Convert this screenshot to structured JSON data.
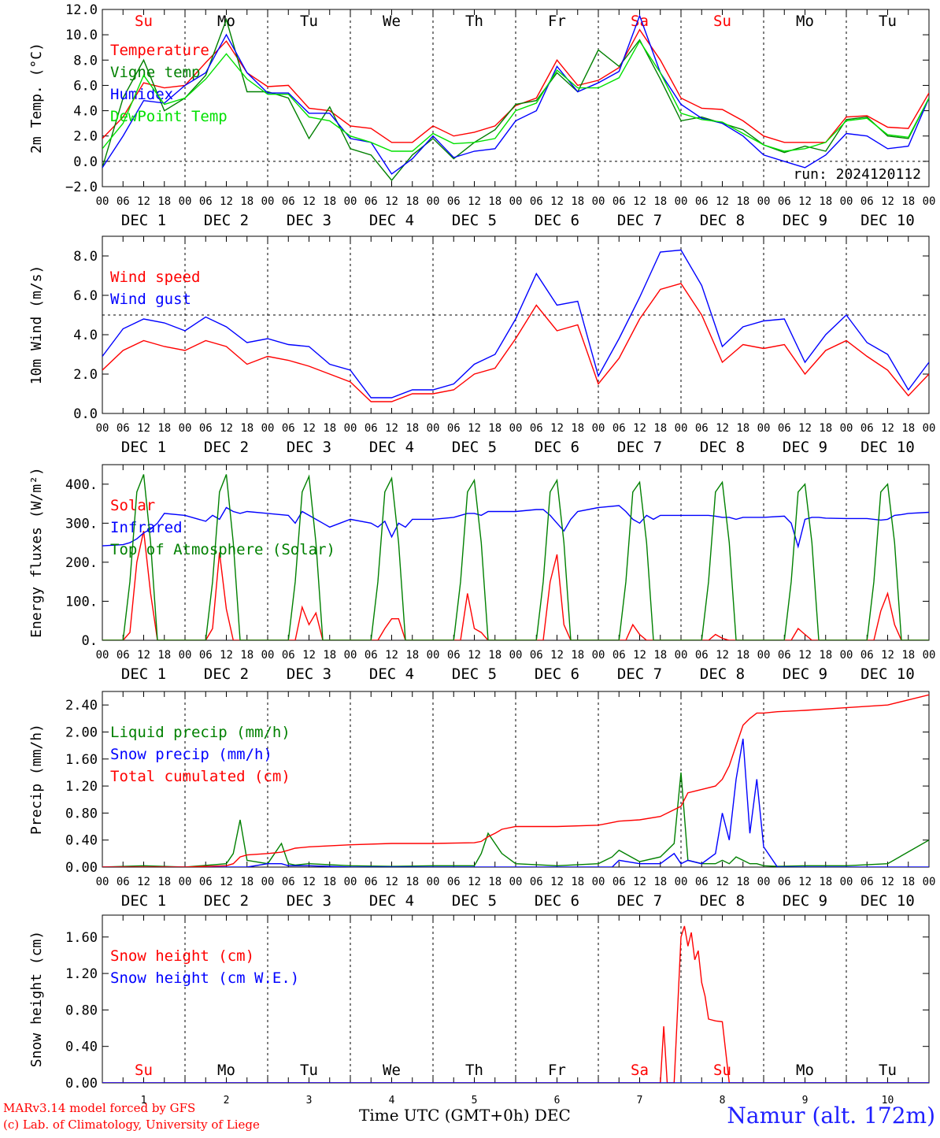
{
  "footer": {
    "credit_line1": "MARv3.14 model forced by GFS",
    "credit_line2": "(c) Lab. of Climatology, University of Liege",
    "xlabel": "Time UTC (GMT+0h) DEC",
    "station": "Namur (alt. 172m)"
  },
  "axis_common": {
    "hour_ticks": [
      "00",
      "06",
      "12",
      "18"
    ],
    "final_tick": "00",
    "date_labels": [
      "DEC  1",
      "DEC  2",
      "DEC  3",
      "DEC  4",
      "DEC  5",
      "DEC  6",
      "DEC  7",
      "DEC  8",
      "DEC  9",
      "DEC 10"
    ],
    "bottom_day_numbers": [
      "1",
      "2",
      "3",
      "4",
      "5",
      "6",
      "7",
      "8",
      "9",
      "10"
    ],
    "weekdays": [
      "Su",
      "Mo",
      "Tu",
      "We",
      "Th",
      "Fr",
      "Sa",
      "Su",
      "Mo",
      "Tu"
    ],
    "weekend_color": "#ff0000",
    "weekend_flags": [
      true,
      false,
      false,
      false,
      false,
      false,
      true,
      true,
      false,
      false
    ]
  },
  "chart_data": [
    {
      "type": "line",
      "ylabel": "2m Temp. (°C)",
      "ylim": [
        -2,
        12
      ],
      "yticks": [
        -2,
        0,
        2,
        4,
        6,
        8,
        10,
        12
      ],
      "ytick_labels": [
        "−2.0",
        "0.0",
        "2.0",
        "4.0",
        "6.0",
        "8.0",
        "10.0",
        "12.0"
      ],
      "reference_line": 0,
      "annotation": "run: 2024120112",
      "x_hours": [
        0,
        6,
        12,
        18,
        24,
        30,
        36,
        42,
        48,
        54,
        60,
        66,
        72,
        78,
        84,
        90,
        96,
        102,
        108,
        114,
        120,
        126,
        132,
        138,
        144,
        150,
        156,
        162,
        168,
        174,
        180,
        186,
        192,
        198,
        204,
        210,
        216,
        222,
        228,
        234,
        240
      ],
      "series": [
        {
          "name": "Temperature",
          "color": "#ff0000",
          "values": [
            1.8,
            3.5,
            6.2,
            5.8,
            6.0,
            7.8,
            9.5,
            7.0,
            5.9,
            6.0,
            4.2,
            4.0,
            2.8,
            2.6,
            1.5,
            1.5,
            2.8,
            2.0,
            2.3,
            2.8,
            4.4,
            5.0,
            8.0,
            6.0,
            6.4,
            7.4,
            10.4,
            8.0,
            5.0,
            4.2,
            4.1,
            3.2,
            2.0,
            1.5,
            1.5,
            1.5,
            3.5,
            3.6,
            2.7,
            2.6,
            5.4
          ]
        },
        {
          "name": "Vigne temp",
          "color": "#008000",
          "values": [
            -0.5,
            5.0,
            8.0,
            4.0,
            5.0,
            6.8,
            11.2,
            5.5,
            5.5,
            5.0,
            1.8,
            4.3,
            1.0,
            0.5,
            -1.5,
            0.5,
            1.8,
            0.2,
            1.5,
            2.5,
            4.5,
            4.8,
            7.0,
            5.5,
            8.8,
            7.5,
            9.6,
            6.5,
            3.2,
            3.5,
            3.0,
            2.5,
            1.3,
            0.7,
            1.2,
            0.8,
            3.3,
            3.5,
            2.0,
            1.8,
            5.0
          ]
        },
        {
          "name": "Humidex",
          "color": "#0000ff",
          "values": [
            -0.5,
            2.0,
            4.8,
            4.6,
            6.0,
            7.0,
            10.0,
            7.0,
            5.4,
            5.4,
            3.8,
            3.8,
            1.8,
            1.5,
            -1.0,
            0.2,
            2.0,
            0.3,
            0.8,
            1.0,
            3.2,
            4.0,
            7.5,
            5.5,
            6.2,
            7.1,
            11.5,
            7.0,
            4.5,
            3.4,
            3.0,
            2.0,
            0.5,
            0.0,
            -0.5,
            0.5,
            2.2,
            2.0,
            1.0,
            1.2,
            5.0
          ]
        },
        {
          "name": "DewPoint Temp",
          "color": "#00e000",
          "values": [
            1.0,
            3.0,
            6.8,
            4.5,
            5.0,
            6.5,
            8.5,
            6.5,
            5.3,
            5.3,
            3.5,
            3.2,
            2.0,
            1.5,
            0.8,
            0.8,
            2.2,
            1.4,
            1.5,
            1.8,
            4.0,
            4.6,
            7.2,
            5.8,
            5.8,
            6.6,
            9.5,
            7.0,
            3.8,
            3.3,
            3.1,
            2.2,
            1.3,
            0.8,
            1.0,
            1.5,
            3.2,
            3.4,
            2.1,
            1.9,
            5.0
          ]
        }
      ]
    },
    {
      "type": "line",
      "ylabel": "10m Wind (m/s)",
      "ylim": [
        0,
        9
      ],
      "yticks": [
        0,
        2,
        4,
        6,
        8
      ],
      "ytick_labels": [
        "0.0",
        "2.0",
        "4.0",
        "6.0",
        "8.0"
      ],
      "reference_line": 5,
      "x_hours": [
        0,
        6,
        12,
        18,
        24,
        30,
        36,
        42,
        48,
        54,
        60,
        66,
        72,
        78,
        84,
        90,
        96,
        102,
        108,
        114,
        120,
        126,
        132,
        138,
        144,
        150,
        156,
        162,
        168,
        174,
        180,
        186,
        192,
        198,
        204,
        210,
        216,
        222,
        228,
        234,
        240
      ],
      "series": [
        {
          "name": "Wind speed",
          "color": "#ff0000",
          "values": [
            2.2,
            3.2,
            3.7,
            3.4,
            3.2,
            3.7,
            3.4,
            2.5,
            2.9,
            2.7,
            2.4,
            2.0,
            1.6,
            0.6,
            0.6,
            1.0,
            1.0,
            1.2,
            2.0,
            2.3,
            3.8,
            5.5,
            4.2,
            4.5,
            1.5,
            2.8,
            4.8,
            6.3,
            6.6,
            5.0,
            2.6,
            3.5,
            3.3,
            3.5,
            2.0,
            3.2,
            3.7,
            2.9,
            2.2,
            0.9,
            2.0
          ]
        },
        {
          "name": "Wind gust",
          "color": "#0000ff",
          "values": [
            2.9,
            4.3,
            4.8,
            4.6,
            4.2,
            4.9,
            4.4,
            3.6,
            3.8,
            3.5,
            3.4,
            2.5,
            2.2,
            0.8,
            0.8,
            1.2,
            1.2,
            1.5,
            2.5,
            3.0,
            4.8,
            7.1,
            5.5,
            5.7,
            1.9,
            3.8,
            5.9,
            8.2,
            8.3,
            6.5,
            3.4,
            4.4,
            4.7,
            4.8,
            2.6,
            4.0,
            5.0,
            3.6,
            3.0,
            1.2,
            2.6
          ]
        }
      ]
    },
    {
      "type": "line",
      "ylabel": "Energy fluxes (W/m²)",
      "ylim": [
        0,
        450
      ],
      "yticks": [
        0,
        100,
        200,
        300,
        400
      ],
      "ytick_labels": [
        "0.",
        "100.",
        "200.",
        "300.",
        "400."
      ],
      "x_hours": [
        0,
        6,
        8,
        10,
        12,
        14,
        16,
        18,
        24,
        30,
        32,
        34,
        36,
        38,
        40,
        42,
        48,
        54,
        56,
        58,
        60,
        62,
        64,
        66,
        72,
        78,
        80,
        82,
        84,
        86,
        88,
        90,
        96,
        102,
        104,
        106,
        108,
        110,
        112,
        114,
        120,
        126,
        128,
        130,
        132,
        134,
        136,
        138,
        144,
        150,
        152,
        154,
        156,
        158,
        160,
        162,
        168,
        174,
        176,
        178,
        180,
        182,
        184,
        186,
        192,
        198,
        200,
        202,
        204,
        206,
        208,
        210,
        216,
        222,
        224,
        226,
        228,
        230,
        232,
        234,
        240
      ],
      "series": [
        {
          "name": "Solar",
          "color": "#ff0000",
          "values": [
            0,
            0,
            20,
            200,
            280,
            120,
            0,
            0,
            0,
            0,
            30,
            225,
            80,
            0,
            0,
            0,
            0,
            0,
            0,
            85,
            40,
            70,
            0,
            0,
            0,
            0,
            0,
            30,
            55,
            55,
            0,
            0,
            0,
            0,
            0,
            120,
            30,
            20,
            0,
            0,
            0,
            0,
            0,
            150,
            220,
            40,
            0,
            0,
            0,
            0,
            0,
            40,
            15,
            0,
            0,
            0,
            0,
            0,
            0,
            15,
            5,
            0,
            0,
            0,
            0,
            0,
            0,
            30,
            15,
            0,
            0,
            0,
            0,
            0,
            0,
            75,
            120,
            40,
            0,
            0,
            0
          ]
        },
        {
          "name": "Infrared",
          "color": "#0000ff",
          "values": [
            242,
            245,
            250,
            260,
            275,
            285,
            300,
            325,
            320,
            305,
            320,
            310,
            340,
            330,
            325,
            330,
            325,
            320,
            300,
            330,
            320,
            310,
            300,
            290,
            310,
            300,
            290,
            305,
            265,
            300,
            290,
            310,
            310,
            315,
            320,
            325,
            325,
            320,
            330,
            330,
            330,
            335,
            335,
            320,
            300,
            280,
            310,
            330,
            340,
            345,
            330,
            310,
            300,
            320,
            310,
            320,
            320,
            320,
            320,
            318,
            315,
            315,
            310,
            315,
            315,
            318,
            300,
            240,
            310,
            315,
            315,
            313,
            312,
            312,
            310,
            308,
            310,
            320,
            322,
            325,
            328
          ]
        },
        {
          "name": "Top of Atmosphere (Solar)",
          "color": "#008000",
          "values": [
            0,
            0,
            150,
            380,
            425,
            250,
            0,
            0,
            0,
            0,
            150,
            380,
            425,
            250,
            0,
            0,
            0,
            0,
            150,
            380,
            420,
            250,
            0,
            0,
            0,
            0,
            150,
            380,
            415,
            250,
            0,
            0,
            0,
            0,
            150,
            380,
            410,
            250,
            0,
            0,
            0,
            0,
            150,
            380,
            410,
            250,
            0,
            0,
            0,
            0,
            150,
            380,
            405,
            250,
            0,
            0,
            0,
            0,
            150,
            380,
            405,
            250,
            0,
            0,
            0,
            0,
            150,
            380,
            400,
            250,
            0,
            0,
            0,
            0,
            150,
            380,
            400,
            250,
            0,
            0,
            0
          ]
        }
      ]
    },
    {
      "type": "line",
      "ylabel": "Precip (mm/h)",
      "ylim": [
        0,
        2.6
      ],
      "yticks": [
        0,
        0.4,
        0.8,
        1.2,
        1.6,
        2.0,
        2.4
      ],
      "ytick_labels": [
        "0.00",
        "0.40",
        "0.80",
        "1.20",
        "1.60",
        "2.00",
        "2.40"
      ],
      "x_hours": [
        0,
        12,
        24,
        36,
        38,
        40,
        42,
        48,
        52,
        54,
        56,
        60,
        72,
        84,
        96,
        108,
        110,
        112,
        114,
        116,
        120,
        132,
        144,
        148,
        150,
        156,
        162,
        166,
        168,
        170,
        174,
        178,
        180,
        182,
        184,
        186,
        188,
        190,
        192,
        196,
        204,
        216,
        228,
        240
      ],
      "series": [
        {
          "name": "Liquid precip (mm/h)",
          "color": "#008000",
          "values": [
            0,
            0.02,
            0,
            0.05,
            0.2,
            0.7,
            0.1,
            0.05,
            0.35,
            0.05,
            0.03,
            0.05,
            0.02,
            0.01,
            0.02,
            0.02,
            0.2,
            0.5,
            0.35,
            0.2,
            0.05,
            0.02,
            0.05,
            0.15,
            0.25,
            0.08,
            0.15,
            0.35,
            1.4,
            0.1,
            0.05,
            0.05,
            0.1,
            0.05,
            0.15,
            0.1,
            0.05,
            0.05,
            0.02,
            0.01,
            0.02,
            0.02,
            0.05,
            0.4
          ]
        },
        {
          "name": "Snow precip (mm/h)",
          "color": "#0000ff",
          "values": [
            0,
            0,
            0,
            0,
            0,
            0,
            0,
            0.05,
            0.05,
            0.02,
            0.02,
            0.02,
            0,
            0,
            0,
            0,
            0,
            0,
            0,
            0,
            0,
            0,
            0,
            0,
            0.1,
            0.05,
            0.05,
            0.2,
            0.05,
            0.1,
            0.05,
            0.2,
            0.8,
            0.4,
            1.3,
            1.9,
            0.5,
            1.3,
            0.3,
            0,
            0,
            0,
            0,
            0
          ]
        },
        {
          "name": "Total cumulated (cm)",
          "color": "#ff0000",
          "values": [
            0,
            0,
            0,
            0.02,
            0.05,
            0.15,
            0.18,
            0.2,
            0.22,
            0.25,
            0.28,
            0.3,
            0.33,
            0.35,
            0.35,
            0.36,
            0.38,
            0.45,
            0.5,
            0.56,
            0.6,
            0.6,
            0.62,
            0.66,
            0.68,
            0.7,
            0.75,
            0.85,
            0.9,
            1.1,
            1.15,
            1.2,
            1.3,
            1.5,
            1.8,
            2.1,
            2.2,
            2.28,
            2.28,
            2.3,
            2.32,
            2.36,
            2.4,
            2.55
          ]
        }
      ]
    },
    {
      "type": "line",
      "ylabel": "Snow height (cm)",
      "ylim": [
        0,
        1.84
      ],
      "yticks": [
        0,
        0.4,
        0.8,
        1.2,
        1.6
      ],
      "ytick_labels": [
        "0.00",
        "0.40",
        "0.80",
        "1.20",
        "1.60"
      ],
      "x_hours": [
        0,
        161,
        162,
        163,
        164,
        165,
        166,
        168,
        169,
        170,
        171,
        172,
        173,
        174,
        175,
        176,
        178,
        180,
        182,
        240
      ],
      "series": [
        {
          "name": "Snow height (cm)",
          "color": "#ff0000",
          "values": [
            0,
            0,
            0,
            0.62,
            0,
            0,
            0,
            1.6,
            1.72,
            1.5,
            1.65,
            1.35,
            1.45,
            1.1,
            0.95,
            0.7,
            0.68,
            0.67,
            0,
            0
          ]
        },
        {
          "name": "Snow height (cm W.E.)",
          "color": "#0000ff",
          "values": [
            0,
            0,
            0,
            0,
            0,
            0,
            0,
            0,
            0,
            0,
            0,
            0,
            0,
            0,
            0,
            0,
            0,
            0,
            0,
            0
          ]
        }
      ]
    }
  ]
}
